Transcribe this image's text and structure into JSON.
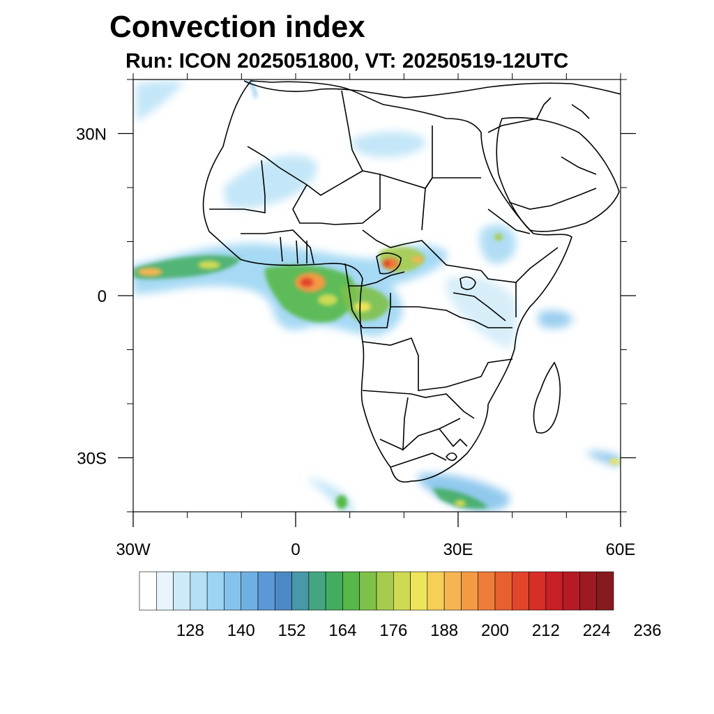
{
  "title": "Convection index",
  "subtitle": "Run: ICON 2025051800,  VT: 20250519-12UTC",
  "map": {
    "extent": {
      "lon": [
        -30,
        60
      ],
      "lat": [
        -40,
        40
      ]
    },
    "lat_ticks": [
      {
        "value": 30,
        "label": "30N"
      },
      {
        "value": 0,
        "label": "0"
      },
      {
        "value": -30,
        "label": "30S"
      }
    ],
    "lon_ticks": [
      {
        "value": -30,
        "label": "30W"
      },
      {
        "value": 0,
        "label": "0"
      },
      {
        "value": 30,
        "label": "30E"
      },
      {
        "value": 60,
        "label": "60E"
      }
    ],
    "minor_ticks_deg": 10
  },
  "colorbar": {
    "labels": [
      "128",
      "140",
      "152",
      "164",
      "176",
      "188",
      "200",
      "212",
      "224",
      "236"
    ],
    "colors": [
      "#ffffff",
      "#e8f5fc",
      "#cdeaf8",
      "#b4e0f6",
      "#9cd5f3",
      "#85c3ec",
      "#6fb0e3",
      "#5b99d6",
      "#4c89c4",
      "#4798a8",
      "#45a581",
      "#43ad5f",
      "#55b848",
      "#7ec04a",
      "#a6cc4e",
      "#cfda54",
      "#ede55a",
      "#f6cf58",
      "#f6b552",
      "#f39a44",
      "#ee7c39",
      "#e8602f",
      "#e1452b",
      "#d72e28",
      "#c91f27",
      "#b51b25",
      "#9e1a22",
      "#861a1e"
    ]
  }
}
